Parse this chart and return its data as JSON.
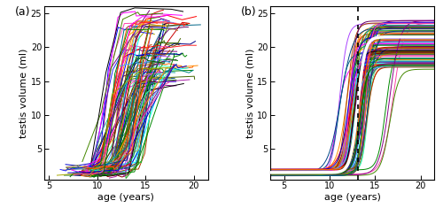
{
  "panel_a_label": "(a)",
  "panel_b_label": "(b)",
  "xlabel": "age (years)",
  "ylabel": "testis volume (ml)",
  "xlim_a": [
    4.5,
    21.5
  ],
  "xlim_b": [
    3.5,
    21.5
  ],
  "ylim": [
    0.5,
    26
  ],
  "xticks": [
    5,
    10,
    15,
    20
  ],
  "yticks": [
    5,
    10,
    15,
    20,
    25
  ],
  "n_boys": 101,
  "mean_peak_age": 13.1,
  "vline_x": 13.1,
  "colors": [
    "red",
    "blue",
    "green",
    "magenta",
    "cyan",
    "#ff8800",
    "purple",
    "#cc0000",
    "#0000cc",
    "#008800",
    "#880088",
    "#008888",
    "#aaaa00",
    "#ff44aa",
    "#44aaff",
    "#aa4400",
    "#004488",
    "#448800",
    "black",
    "#ff6600",
    "#006600",
    "#660066",
    "#006688",
    "#886600",
    "#880000",
    "#000088",
    "#446600",
    "#664400",
    "#226666",
    "#aaaa44",
    "#ff2222",
    "#2222ff",
    "#22aa22",
    "#aa22aa",
    "#22aaaa",
    "#ffaa00",
    "#aa44ff",
    "#44ffaa",
    "#ff44aa",
    "#aa8844"
  ]
}
